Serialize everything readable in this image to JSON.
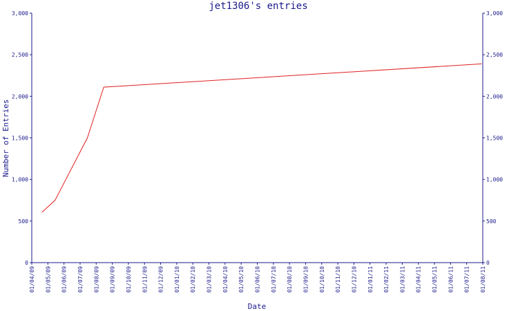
{
  "chart_data": {
    "type": "line",
    "title": "jet1306's entries",
    "xlabel": "Date",
    "ylabel": "Number of Entries",
    "ylim": [
      0,
      3000
    ],
    "y_ticks": [
      "0",
      "500",
      "1,000",
      "1,500",
      "2,000",
      "2,500",
      "3,000"
    ],
    "y_tick_values": [
      0,
      500,
      1000,
      1500,
      2000,
      2500,
      3000
    ],
    "x_ticks": [
      "01/04/09",
      "01/05/09",
      "01/06/09",
      "01/07/09",
      "01/08/09",
      "01/09/09",
      "01/10/09",
      "01/11/09",
      "01/12/09",
      "01/01/10",
      "01/02/10",
      "01/03/10",
      "01/04/10",
      "01/05/10",
      "01/06/10",
      "01/07/10",
      "01/08/10",
      "01/09/10",
      "01/10/10",
      "01/11/10",
      "01/12/10",
      "01/01/11",
      "01/02/11",
      "01/03/11",
      "01/04/11",
      "01/05/11",
      "01/06/11",
      "01/07/11",
      "01/08/11"
    ],
    "grid": false,
    "series": [
      {
        "color": "#e02020",
        "x": [
          "2009-04-20",
          "2009-05-15",
          "2009-07-15",
          "2009-08-15",
          "2011-07-30"
        ],
        "y": [
          605,
          750,
          1500,
          2110,
          2390
        ]
      }
    ]
  },
  "colors": {
    "axis": "#1a1a8c",
    "line": "#e02020",
    "background": "#ffffff"
  }
}
